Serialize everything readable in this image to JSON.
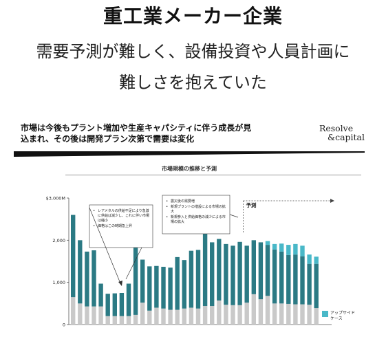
{
  "hero": {
    "title": "重工業メーカー企業",
    "line1": "需要予測が難しく、設備投資や人員計画に",
    "line2": "難しさを抱えていた"
  },
  "slide": {
    "headline_line1": "市場は今後もプラント増加や生産キャパシティに伴う成長が見",
    "headline_line2": "込まれ、その後は開発プラン次第で需要は変化",
    "brand_line1": "Resolve",
    "brand_line2": "&capital"
  },
  "chart_data": {
    "type": "bar",
    "title": "市場規模の推移と予測",
    "y_ticks": [
      "$3,000M",
      "2,000",
      "1,000",
      "0"
    ],
    "ylim": [
      0,
      3000
    ],
    "colors": {
      "base": "#c9c9c9",
      "main": "#2b7a84",
      "upside": "#49b8c8"
    },
    "series": [
      {
        "name": "",
        "values": [
          650,
          500,
          430,
          430,
          430,
          200,
          200,
          200,
          200,
          230,
          520,
          330,
          400,
          380,
          350,
          350,
          380,
          400,
          380,
          440,
          440,
          570,
          470,
          460,
          460,
          520,
          720,
          600,
          680,
          500,
          500,
          490,
          480,
          480,
          470,
          390
        ]
      },
      {
        "name": "",
        "values": [
          1950,
          1500,
          1300,
          1330,
          540,
          530,
          540,
          550,
          770,
          1610,
          1020,
          1050,
          990,
          990,
          1000,
          1250,
          1150,
          1350,
          1390,
          1740,
          1510,
          1460,
          1440,
          1410,
          1500,
          1350,
          1280,
          1350,
          1210,
          1280,
          1230,
          1160,
          1180,
          1140,
          970,
          1050
        ]
      },
      {
        "name": "アップサイド\nケース",
        "values": [
          0,
          0,
          0,
          0,
          0,
          0,
          0,
          0,
          0,
          0,
          0,
          0,
          0,
          0,
          0,
          0,
          0,
          0,
          0,
          0,
          0,
          0,
          0,
          0,
          0,
          0,
          0,
          0,
          90,
          130,
          190,
          240,
          250,
          250,
          220,
          170
        ]
      }
    ],
    "forecast_label": "予測",
    "forecast_start_index": 25,
    "legend_label": "アップサイド\nケース",
    "annotations": [
      {
        "bullets": [
          "レアメタルの供給不足により急激に供給は減少し、これに伴い市場は縮小",
          "価格はこの時期急上昇"
        ]
      },
      {
        "bullets": [
          "震災後の需要増",
          "新規プラントの増設による市場の拡大",
          "新規参入と供給価格の減少による市場の拡大"
        ]
      }
    ]
  }
}
